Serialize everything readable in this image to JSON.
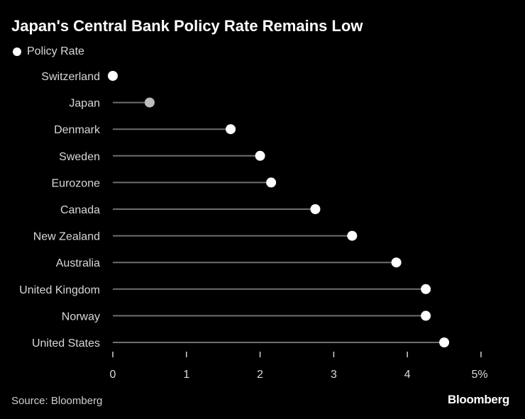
{
  "chart_data": {
    "type": "dot",
    "title": "Japan's Central Bank Policy Rate Remains Low",
    "legend": [
      {
        "name": "Policy Rate",
        "color": "#ffffff"
      }
    ],
    "categories": [
      "Switzerland",
      "Japan",
      "Denmark",
      "Sweden",
      "Eurozone",
      "Canada",
      "New Zealand",
      "Australia",
      "United Kingdom",
      "Norway",
      "United States"
    ],
    "values": [
      0,
      0.5,
      1.6,
      2.0,
      2.15,
      2.75,
      3.25,
      3.85,
      4.25,
      4.25,
      4.5
    ],
    "highlight": "Japan",
    "highlight_color": "#bdbdbd",
    "xlim": [
      0,
      5
    ],
    "xticks": [
      0,
      1,
      2,
      3,
      4,
      5
    ],
    "xtick_labels": [
      "0",
      "1",
      "2",
      "3",
      "4",
      "5%"
    ],
    "xlabel": "",
    "ylabel": ""
  },
  "source": "Source: Bloomberg",
  "brand": "Bloomberg",
  "colors": {
    "background": "#000000",
    "text": "#ffffff",
    "stem": "#6e6e6e",
    "dot": "#ffffff",
    "highlight": "#bdbdbd"
  }
}
